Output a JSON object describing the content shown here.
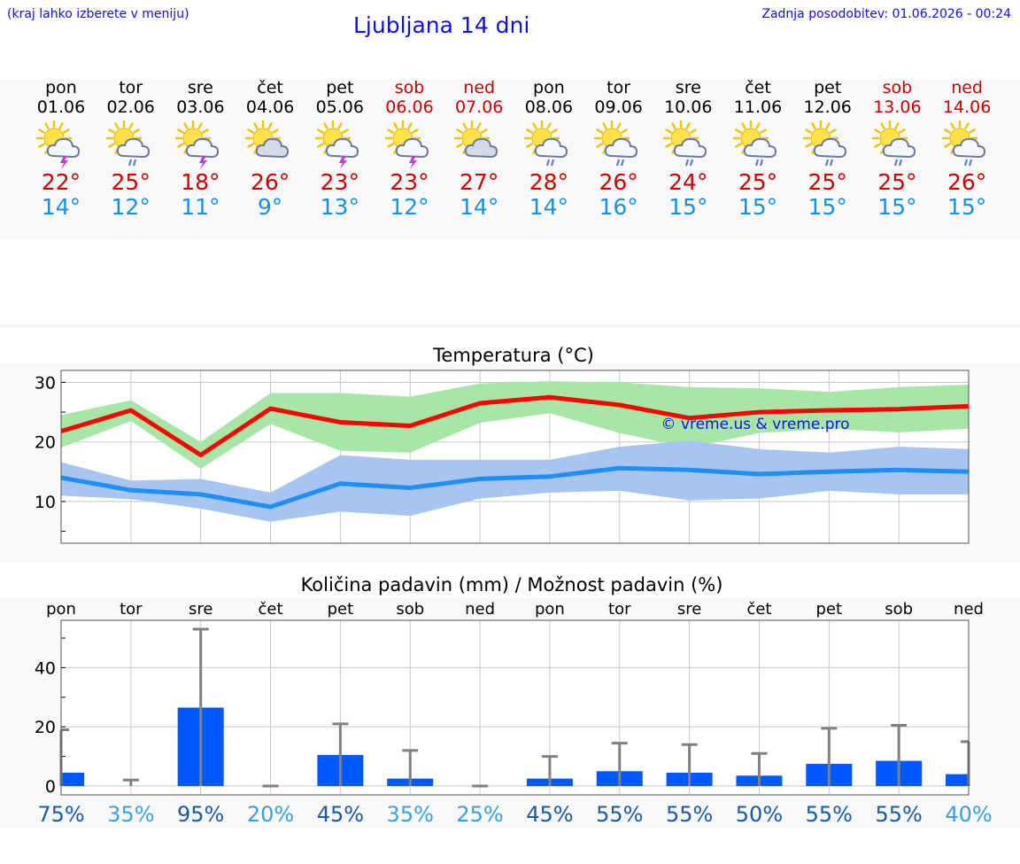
{
  "header": {
    "hint": "(kraj lahko izberete v meniju)",
    "title": "Ljubljana 14 dni",
    "updated": "Zadnja posodobitev: 01.06.2026 - 00:24"
  },
  "days": [
    {
      "name": "pon",
      "date": "01.06",
      "icon": "sun-cloud-thunder-icon",
      "tmax": "22°",
      "tmin": "14°",
      "weekend": false
    },
    {
      "name": "tor",
      "date": "02.06",
      "icon": "sun-cloud-rain-icon",
      "tmax": "25°",
      "tmin": "12°",
      "weekend": false
    },
    {
      "name": "sre",
      "date": "03.06",
      "icon": "sun-cloud-thunder-icon",
      "tmax": "18°",
      "tmin": "11°",
      "weekend": false
    },
    {
      "name": "čet",
      "date": "04.06",
      "icon": "sun-cloud-icon",
      "tmax": "26°",
      "tmin": "9°",
      "weekend": false
    },
    {
      "name": "pet",
      "date": "05.06",
      "icon": "sun-cloud-thunder-icon",
      "tmax": "23°",
      "tmin": "13°",
      "weekend": false
    },
    {
      "name": "sob",
      "date": "06.06",
      "icon": "sun-cloud-thunder-icon",
      "tmax": "23°",
      "tmin": "12°",
      "weekend": true
    },
    {
      "name": "ned",
      "date": "07.06",
      "icon": "sun-cloud-icon",
      "tmax": "27°",
      "tmin": "14°",
      "weekend": true
    },
    {
      "name": "pon",
      "date": "08.06",
      "icon": "sun-cloud-rain-icon",
      "tmax": "28°",
      "tmin": "14°",
      "weekend": false
    },
    {
      "name": "tor",
      "date": "09.06",
      "icon": "sun-cloud-rain-icon",
      "tmax": "26°",
      "tmin": "16°",
      "weekend": false
    },
    {
      "name": "sre",
      "date": "10.06",
      "icon": "sun-cloud-rain-icon",
      "tmax": "24°",
      "tmin": "15°",
      "weekend": false
    },
    {
      "name": "čet",
      "date": "11.06",
      "icon": "sun-cloud-rain-icon",
      "tmax": "25°",
      "tmin": "15°",
      "weekend": false
    },
    {
      "name": "pet",
      "date": "12.06",
      "icon": "sun-cloud-rain-icon",
      "tmax": "25°",
      "tmin": "15°",
      "weekend": false
    },
    {
      "name": "sob",
      "date": "13.06",
      "icon": "sun-cloud-rain-icon",
      "tmax": "25°",
      "tmin": "15°",
      "weekend": true
    },
    {
      "name": "ned",
      "date": "14.06",
      "icon": "sun-cloud-rain-icon",
      "tmax": "26°",
      "tmin": "15°",
      "weekend": true
    }
  ],
  "chart_data": [
    {
      "type": "line",
      "title": "Temperatura (°C)",
      "watermark": "© vreme.us & vreme.pro",
      "ylim": [
        3,
        32
      ],
      "yticks": [
        10,
        20,
        30
      ],
      "grid": true,
      "x": [
        0,
        1,
        2,
        3,
        4,
        5,
        6,
        7,
        8,
        9,
        10,
        11,
        12,
        13
      ],
      "xlim": [
        0,
        13
      ],
      "series": [
        {
          "color": "#ff0000",
          "values": [
            21.8,
            25.3,
            17.8,
            25.6,
            23.3,
            22.7,
            26.5,
            27.5,
            26.2,
            24.0,
            25.0,
            25.3,
            25.5,
            26.0
          ],
          "band_low": [
            19.0,
            23.5,
            15.5,
            23.0,
            18.5,
            18.2,
            23.2,
            24.8,
            21.5,
            19.0,
            21.5,
            22.2,
            21.6,
            22.2
          ],
          "band_high": [
            24.5,
            27.0,
            20.0,
            28.2,
            28.2,
            27.6,
            29.8,
            30.2,
            30.0,
            29.2,
            29.0,
            28.4,
            29.2,
            29.6
          ],
          "band_color": "#a8e6a8"
        },
        {
          "color": "#1e8ff5",
          "values": [
            14.0,
            11.9,
            11.2,
            9.1,
            13.0,
            12.3,
            13.8,
            14.2,
            15.6,
            15.3,
            14.6,
            15.0,
            15.3,
            15.0
          ],
          "band_low": [
            11.0,
            10.4,
            8.8,
            6.6,
            8.3,
            7.6,
            10.5,
            11.5,
            11.8,
            10.2,
            10.5,
            11.8,
            11.2,
            11.2
          ],
          "band_high": [
            16.6,
            13.5,
            13.8,
            11.5,
            17.8,
            17.0,
            17.0,
            17.0,
            19.2,
            20.2,
            18.8,
            18.2,
            19.2,
            18.8
          ],
          "band_color": "#a8c4f0"
        }
      ]
    },
    {
      "type": "bar",
      "title": "Količina padavin (mm) / Možnost padavin (%)",
      "categories": [
        "pon",
        "tor",
        "sre",
        "čet",
        "pet",
        "sob",
        "ned",
        "pon",
        "tor",
        "sre",
        "čet",
        "pet",
        "sob",
        "ned"
      ],
      "values": [
        4.5,
        0,
        26.5,
        0,
        10.5,
        2.5,
        0,
        2.5,
        5,
        4.5,
        3.5,
        7.5,
        8.5,
        4
      ],
      "error_high": [
        19,
        2,
        53,
        0,
        21,
        12,
        0,
        10,
        14.5,
        14,
        11,
        19.5,
        20.5,
        15
      ],
      "probability": [
        "75%",
        "35%",
        "95%",
        "20%",
        "45%",
        "35%",
        "25%",
        "45%",
        "55%",
        "55%",
        "50%",
        "55%",
        "55%",
        "40%"
      ],
      "ylim": [
        -3,
        56
      ],
      "yticks": [
        0,
        20,
        40
      ],
      "bar_color": "#0058ff",
      "error_color": "#808080"
    }
  ]
}
